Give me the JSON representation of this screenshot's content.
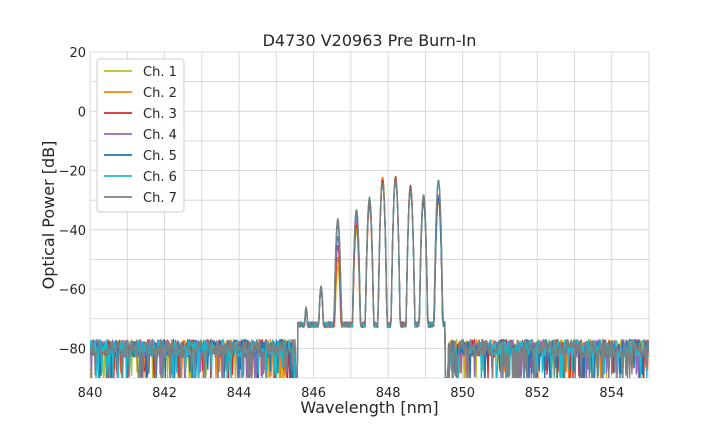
{
  "chart_data": {
    "type": "line",
    "title": "D4730 V20963 Pre Burn-In",
    "xlabel": "Wavelength [nm]",
    "ylabel": "Optical Power [dB]",
    "xlim": [
      840,
      855
    ],
    "ylim": [
      -90,
      20
    ],
    "xticks": [
      840,
      842,
      844,
      846,
      848,
      850,
      852,
      854
    ],
    "yticks": [
      20,
      0,
      -20,
      -40,
      -60,
      -80
    ],
    "ytick_labels": [
      "20",
      "0",
      "−20",
      "−40",
      "−60",
      "−80"
    ],
    "grid": true,
    "legend_position": "upper-left",
    "noise_floor_db": -80,
    "noise_region_nm": [
      [
        840,
        845.5
      ],
      [
        849.6,
        855
      ]
    ],
    "series": [
      {
        "name": "Ch. 1",
        "color": "#bcbd22",
        "peaks": [
          {
            "x": 845.8,
            "y": -67
          },
          {
            "x": 846.2,
            "y": -60
          },
          {
            "x": 846.65,
            "y": -52
          },
          {
            "x": 847.15,
            "y": -40
          },
          {
            "x": 847.5,
            "y": -31
          },
          {
            "x": 847.85,
            "y": -23
          },
          {
            "x": 848.2,
            "y": -23
          },
          {
            "x": 848.6,
            "y": -26
          },
          {
            "x": 848.95,
            "y": -31
          },
          {
            "x": 849.35,
            "y": -30
          }
        ]
      },
      {
        "name": "Ch. 2",
        "color": "#ff7f0e",
        "peaks": [
          {
            "x": 845.8,
            "y": -67
          },
          {
            "x": 846.2,
            "y": -60
          },
          {
            "x": 846.65,
            "y": -49
          },
          {
            "x": 847.15,
            "y": -37
          },
          {
            "x": 847.5,
            "y": -32
          },
          {
            "x": 847.85,
            "y": -22
          },
          {
            "x": 848.2,
            "y": -22
          },
          {
            "x": 848.6,
            "y": -25
          },
          {
            "x": 848.95,
            "y": -29
          },
          {
            "x": 849.35,
            "y": -29
          }
        ]
      },
      {
        "name": "Ch. 3",
        "color": "#d62728",
        "peaks": [
          {
            "x": 845.8,
            "y": -67
          },
          {
            "x": 846.2,
            "y": -60
          },
          {
            "x": 846.65,
            "y": -45
          },
          {
            "x": 847.15,
            "y": -38
          },
          {
            "x": 847.5,
            "y": -31
          },
          {
            "x": 847.85,
            "y": -23
          },
          {
            "x": 848.2,
            "y": -22
          },
          {
            "x": 848.6,
            "y": -25
          },
          {
            "x": 848.95,
            "y": -30
          },
          {
            "x": 849.35,
            "y": -29
          }
        ]
      },
      {
        "name": "Ch. 4",
        "color": "#9467bd",
        "peaks": [
          {
            "x": 845.8,
            "y": -67
          },
          {
            "x": 846.2,
            "y": -59
          },
          {
            "x": 846.65,
            "y": -42
          },
          {
            "x": 847.15,
            "y": -36
          },
          {
            "x": 847.5,
            "y": -30
          },
          {
            "x": 847.85,
            "y": -24
          },
          {
            "x": 848.2,
            "y": -23
          },
          {
            "x": 848.6,
            "y": -26
          },
          {
            "x": 848.95,
            "y": -29
          },
          {
            "x": 849.35,
            "y": -28
          }
        ]
      },
      {
        "name": "Ch. 5",
        "color": "#1f77b4",
        "peaks": [
          {
            "x": 845.8,
            "y": -67
          },
          {
            "x": 846.2,
            "y": -59
          },
          {
            "x": 846.65,
            "y": -38
          },
          {
            "x": 847.15,
            "y": -34
          },
          {
            "x": 847.5,
            "y": -30
          },
          {
            "x": 847.85,
            "y": -24
          },
          {
            "x": 848.2,
            "y": -23
          },
          {
            "x": 848.6,
            "y": -27
          },
          {
            "x": 848.95,
            "y": -30
          },
          {
            "x": 849.35,
            "y": -29
          }
        ]
      },
      {
        "name": "Ch. 6",
        "color": "#17becf",
        "peaks": [
          {
            "x": 845.8,
            "y": -66
          },
          {
            "x": 846.2,
            "y": -59
          },
          {
            "x": 846.65,
            "y": -37
          },
          {
            "x": 847.15,
            "y": -33
          },
          {
            "x": 847.5,
            "y": -29
          },
          {
            "x": 847.85,
            "y": -24
          },
          {
            "x": 848.2,
            "y": -23
          },
          {
            "x": 848.6,
            "y": -26
          },
          {
            "x": 848.95,
            "y": -28
          },
          {
            "x": 849.35,
            "y": -24
          }
        ]
      },
      {
        "name": "Ch. 7",
        "color": "#7f7f7f",
        "peaks": [
          {
            "x": 845.8,
            "y": -66
          },
          {
            "x": 846.2,
            "y": -59
          },
          {
            "x": 846.65,
            "y": -36
          },
          {
            "x": 847.15,
            "y": -33
          },
          {
            "x": 847.5,
            "y": -29
          },
          {
            "x": 847.85,
            "y": -24
          },
          {
            "x": 848.2,
            "y": -23
          },
          {
            "x": 848.6,
            "y": -26
          },
          {
            "x": 848.95,
            "y": -28
          },
          {
            "x": 849.35,
            "y": -23
          }
        ]
      }
    ]
  }
}
